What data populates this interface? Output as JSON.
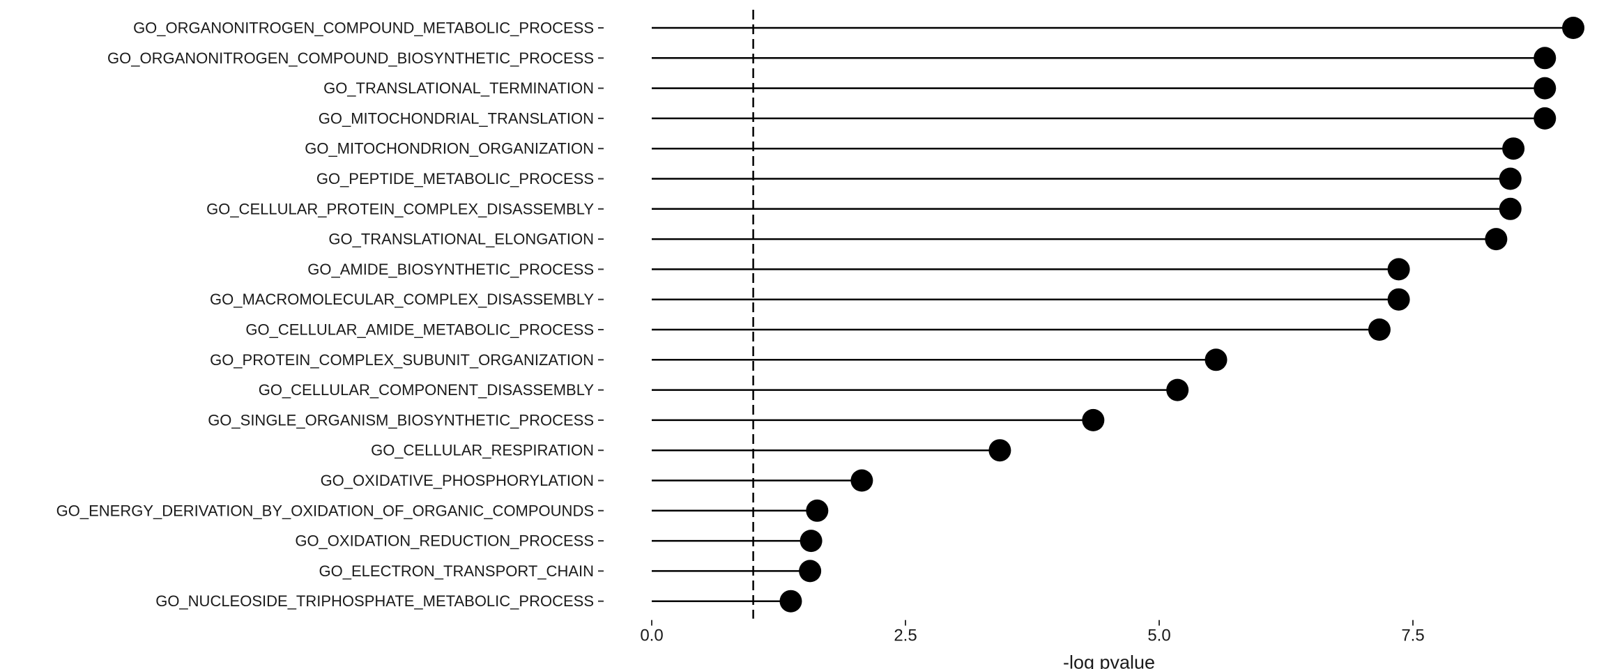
{
  "chart_data": {
    "type": "lollipop",
    "title": "",
    "xlabel": "-log pvalue",
    "ylabel": "",
    "xlim": [
      0,
      9.4
    ],
    "x_ticks": [
      0,
      2.5,
      5,
      7.5
    ],
    "x_tick_labels": [
      "0.0",
      "2.5",
      "5.0",
      "7.5"
    ],
    "threshold": 1.0,
    "grid": false,
    "legend": "none",
    "colors": {
      "point": "#000000",
      "stem": "#000000",
      "threshold": "#000000"
    },
    "categories": [
      "GO_ORGANONITROGEN_COMPOUND_METABOLIC_PROCESS",
      "GO_ORGANONITROGEN_COMPOUND_BIOSYNTHETIC_PROCESS",
      "GO_TRANSLATIONAL_TERMINATION",
      "GO_MITOCHONDRIAL_TRANSLATION",
      "GO_MITOCHONDRION_ORGANIZATION",
      "GO_PEPTIDE_METABOLIC_PROCESS",
      "GO_CELLULAR_PROTEIN_COMPLEX_DISASSEMBLY",
      "GO_TRANSLATIONAL_ELONGATION",
      "GO_AMIDE_BIOSYNTHETIC_PROCESS",
      "GO_MACROMOLECULAR_COMPLEX_DISASSEMBLY",
      "GO_CELLULAR_AMIDE_METABOLIC_PROCESS",
      "GO_PROTEIN_COMPLEX_SUBUNIT_ORGANIZATION",
      "GO_CELLULAR_COMPONENT_DISASSEMBLY",
      "GO_SINGLE_ORGANISM_BIOSYNTHETIC_PROCESS",
      "GO_CELLULAR_RESPIRATION",
      "GO_OXIDATIVE_PHOSPHORYLATION",
      "GO_ENERGY_DERIVATION_BY_OXIDATION_OF_ORGANIC_COMPOUNDS",
      "GO_OXIDATION_REDUCTION_PROCESS",
      "GO_ELECTRON_TRANSPORT_CHAIN",
      "GO_NUCLEOSIDE_TRIPHOSPHATE_METABOLIC_PROCESS"
    ],
    "values": [
      9.08,
      8.8,
      8.8,
      8.8,
      8.49,
      8.46,
      8.46,
      8.32,
      7.36,
      7.36,
      7.17,
      5.56,
      5.18,
      4.35,
      3.43,
      2.07,
      1.63,
      1.57,
      1.56,
      1.37
    ]
  }
}
